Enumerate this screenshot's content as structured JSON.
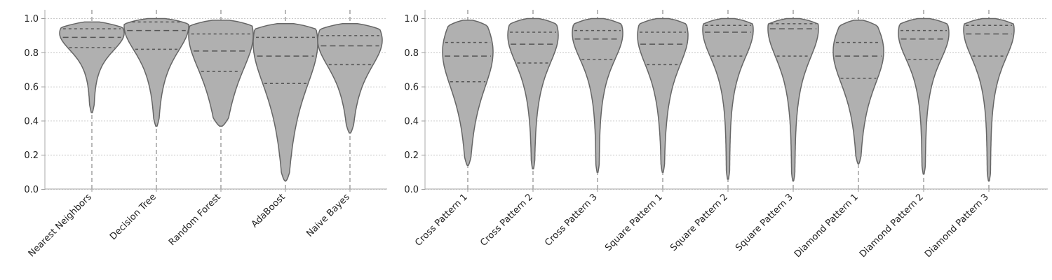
{
  "chart_data": [
    {
      "type": "violin",
      "ylim": [
        0.0,
        1.0
      ],
      "yticks": [
        "0.0",
        "0.2",
        "0.4",
        "0.6",
        "0.8",
        "1.0"
      ],
      "grid": "horizontal dashed",
      "fill_color": "#b0b0b0",
      "edge_color": "#666666",
      "center_line_color": "#a8a8a8",
      "categories": [
        "Nearest Neighbors",
        "Decision Tree",
        "Random Forest",
        "AdaBoost",
        "Naive Bayes"
      ],
      "violins": [
        {
          "name": "Nearest Neighbors",
          "min": 0.45,
          "max": 0.98,
          "q1": 0.83,
          "median": 0.89,
          "q3": 0.94,
          "mode": 0.93
        },
        {
          "name": "Decision Tree",
          "min": 0.37,
          "max": 1.0,
          "q1": 0.82,
          "median": 0.93,
          "q3": 0.98,
          "mode": 0.98
        },
        {
          "name": "Random Forest",
          "min": 0.37,
          "max": 0.99,
          "q1": 0.69,
          "median": 0.81,
          "q3": 0.91,
          "mode": 0.94
        },
        {
          "name": "AdaBoost",
          "min": 0.05,
          "max": 0.97,
          "q1": 0.62,
          "median": 0.78,
          "q3": 0.89,
          "mode": 0.9
        },
        {
          "name": "Naive Bayes",
          "min": 0.33,
          "max": 0.97,
          "q1": 0.73,
          "median": 0.84,
          "q3": 0.9,
          "mode": 0.9
        }
      ]
    },
    {
      "type": "violin",
      "ylim": [
        0.0,
        1.0
      ],
      "yticks": [
        "0.0",
        "0.2",
        "0.4",
        "0.6",
        "0.8",
        "1.0"
      ],
      "grid": "horizontal dashed",
      "fill_color": "#b0b0b0",
      "edge_color": "#666666",
      "center_line_color": "#a8a8a8",
      "categories": [
        "Cross Pattern 1",
        "Cross Pattern 2",
        "Cross Pattern 3",
        "Square Pattern 1",
        "Square Pattern 2",
        "Square Pattern 3",
        "Diamond Pattern 1",
        "Diamond Pattern 2",
        "Diamond Pattern 3"
      ],
      "violins": [
        {
          "name": "Cross Pattern 1",
          "min": 0.14,
          "max": 0.99,
          "q1": 0.63,
          "median": 0.78,
          "q3": 0.86,
          "mode": 0.84
        },
        {
          "name": "Cross Pattern 2",
          "min": 0.12,
          "max": 1.0,
          "q1": 0.74,
          "median": 0.85,
          "q3": 0.92,
          "mode": 0.93
        },
        {
          "name": "Cross Pattern 3",
          "min": 0.1,
          "max": 1.0,
          "q1": 0.76,
          "median": 0.88,
          "q3": 0.93,
          "mode": 0.94
        },
        {
          "name": "Square Pattern 1",
          "min": 0.1,
          "max": 1.0,
          "q1": 0.73,
          "median": 0.85,
          "q3": 0.92,
          "mode": 0.93
        },
        {
          "name": "Square Pattern 2",
          "min": 0.06,
          "max": 1.0,
          "q1": 0.78,
          "median": 0.92,
          "q3": 0.96,
          "mode": 0.96
        },
        {
          "name": "Square Pattern 3",
          "min": 0.05,
          "max": 1.0,
          "q1": 0.78,
          "median": 0.94,
          "q3": 0.97,
          "mode": 0.97
        },
        {
          "name": "Diamond Pattern 1",
          "min": 0.15,
          "max": 0.99,
          "q1": 0.65,
          "median": 0.78,
          "q3": 0.86,
          "mode": 0.84
        },
        {
          "name": "Diamond Pattern 2",
          "min": 0.09,
          "max": 1.0,
          "q1": 0.76,
          "median": 0.88,
          "q3": 0.93,
          "mode": 0.94
        },
        {
          "name": "Diamond Pattern 3",
          "min": 0.05,
          "max": 1.0,
          "q1": 0.78,
          "median": 0.91,
          "q3": 0.96,
          "mode": 0.96
        }
      ]
    }
  ]
}
